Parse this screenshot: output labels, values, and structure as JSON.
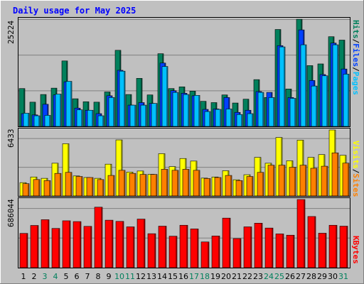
{
  "chart_data": [
    {
      "type": "bar",
      "title": "Daily usage for May 2025",
      "categories": [
        "1",
        "2",
        "3",
        "4",
        "5",
        "6",
        "7",
        "8",
        "9",
        "10",
        "11",
        "12",
        "13",
        "14",
        "15",
        "16",
        "17",
        "18",
        "19",
        "20",
        "21",
        "22",
        "23",
        "24",
        "25",
        "26",
        "27",
        "28",
        "29",
        "30",
        "31"
      ],
      "weekend_days": [
        "3",
        "4",
        "10",
        "11",
        "17",
        "18",
        "24",
        "25",
        "31"
      ],
      "ylim": [
        0,
        25224
      ],
      "max_label": "25224",
      "series": [
        {
          "name": "Hits",
          "values": [
            8900,
            5700,
            7500,
            9000,
            15400,
            6500,
            5800,
            5700,
            8100,
            17900,
            7500,
            11300,
            7400,
            17100,
            8900,
            9300,
            8300,
            5900,
            5600,
            7400,
            5500,
            6400,
            11000,
            6800,
            22800,
            8800,
            25200,
            14300,
            14700,
            21100,
            20300
          ]
        },
        {
          "name": "Files",
          "values": [
            3000,
            2700,
            5200,
            7400,
            10500,
            4300,
            3800,
            3000,
            7200,
            13200,
            5000,
            5600,
            5400,
            14900,
            8400,
            7800,
            7200,
            4000,
            4100,
            6800,
            3300,
            3800,
            8200,
            8000,
            19000,
            6800,
            22700,
            10800,
            12200,
            19600,
            13500
          ]
        },
        {
          "name": "Pages",
          "values": [
            3100,
            2500,
            2600,
            7600,
            10600,
            3900,
            3800,
            2500,
            6800,
            13000,
            5000,
            5000,
            5400,
            14100,
            8000,
            7500,
            7300,
            3500,
            4000,
            4100,
            2800,
            3000,
            8000,
            6800,
            18700,
            6600,
            19200,
            9500,
            11900,
            19200,
            12300
          ]
        }
      ]
    },
    {
      "type": "bar",
      "categories": [
        "1",
        "2",
        "3",
        "4",
        "5",
        "6",
        "7",
        "8",
        "9",
        "10",
        "11",
        "12",
        "13",
        "14",
        "15",
        "16",
        "17",
        "18",
        "19",
        "20",
        "21",
        "22",
        "23",
        "24",
        "25",
        "26",
        "27",
        "28",
        "29",
        "30",
        "31"
      ],
      "ylim": [
        0,
        6433
      ],
      "max_label": "6433",
      "series": [
        {
          "name": "Visits",
          "values": [
            1300,
            1850,
            1720,
            3190,
            5090,
            1950,
            1800,
            1720,
            3100,
            5460,
            2330,
            2430,
            2110,
            4120,
            2860,
            3650,
            3400,
            1740,
            1850,
            2460,
            1580,
            2070,
            3760,
            3190,
            5700,
            3430,
            5440,
            3760,
            4030,
            6430,
            3960
          ]
        },
        {
          "name": "Sites",
          "values": [
            1200,
            1600,
            1500,
            2200,
            2300,
            1900,
            1800,
            1600,
            2000,
            2500,
            2200,
            2100,
            2100,
            2600,
            2500,
            2600,
            2500,
            1700,
            1800,
            2000,
            1500,
            1900,
            2300,
            3000,
            3000,
            2800,
            3000,
            2700,
            2900,
            4200,
            3200
          ]
        }
      ]
    },
    {
      "type": "bar",
      "categories": [
        "1",
        "2",
        "3",
        "4",
        "5",
        "6",
        "7",
        "8",
        "9",
        "10",
        "11",
        "12",
        "13",
        "14",
        "15",
        "16",
        "17",
        "18",
        "19",
        "20",
        "21",
        "22",
        "23",
        "24",
        "25",
        "26",
        "27",
        "28",
        "29",
        "30",
        "31"
      ],
      "ylim": [
        0,
        686044
      ],
      "max_label": "686044",
      "series": [
        {
          "name": "KBytes",
          "values": [
            345000,
            425000,
            483000,
            395000,
            472000,
            464000,
            416000,
            609000,
            478000,
            466000,
            411000,
            489000,
            342000,
            418000,
            317000,
            427000,
            390000,
            259000,
            319000,
            499000,
            293000,
            411000,
            448000,
            399000,
            340000,
            327000,
            686000,
            515000,
            347000,
            427000,
            418000
          ]
        }
      ]
    }
  ],
  "side_labels": {
    "top": {
      "pages": "Pages",
      "files": "Files",
      "hits": "Hits"
    },
    "middle": {
      "sites": "Sites",
      "visits": "Visits"
    },
    "bottom": {
      "kbytes": "KBytes"
    }
  },
  "colors": {
    "background": "#c0c0c0",
    "plot_bg": "#c0c0c0",
    "hits": "#00805c",
    "files": "#0040ff",
    "pages": "#00c0ff",
    "visits": "#ffff00",
    "sites": "#ff8000",
    "kbytes": "#ff0000",
    "title": "#0000ff",
    "weekend_label": "#00805c",
    "weekday_label": "#000000"
  }
}
